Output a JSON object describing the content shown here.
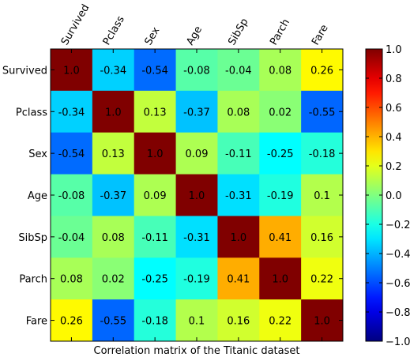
{
  "chart_data": {
    "type": "heatmap",
    "xlabel": "Correlation matrix of the Titanic dataset",
    "row_labels": [
      "Survived",
      "Pclass",
      "Sex",
      "Age",
      "SibSp",
      "Parch",
      "Fare"
    ],
    "col_labels": [
      "Survived",
      "Pclass",
      "Sex",
      "Age",
      "SibSp",
      "Parch",
      "Fare"
    ],
    "values": [
      [
        1.0,
        -0.34,
        -0.54,
        -0.08,
        -0.04,
        0.08,
        0.26
      ],
      [
        -0.34,
        1.0,
        0.13,
        -0.37,
        0.08,
        0.02,
        -0.55
      ],
      [
        -0.54,
        0.13,
        1.0,
        0.09,
        -0.11,
        -0.25,
        -0.18
      ],
      [
        -0.08,
        -0.37,
        0.09,
        1.0,
        -0.31,
        -0.19,
        0.1
      ],
      [
        -0.04,
        0.08,
        -0.11,
        -0.31,
        1.0,
        0.41,
        0.16
      ],
      [
        0.08,
        0.02,
        -0.25,
        -0.19,
        0.41,
        1.0,
        0.22
      ],
      [
        0.26,
        -0.55,
        -0.18,
        0.1,
        0.16,
        0.22,
        1.0
      ]
    ],
    "cell_text": [
      [
        "1.0",
        "-0.34",
        "-0.54",
        "-0.08",
        "-0.04",
        "0.08",
        "0.26"
      ],
      [
        "-0.34",
        "1.0",
        "0.13",
        "-0.37",
        "0.08",
        "0.02",
        "-0.55"
      ],
      [
        "-0.54",
        "0.13",
        "1.0",
        "0.09",
        "-0.11",
        "-0.25",
        "-0.18"
      ],
      [
        "-0.08",
        "-0.37",
        "0.09",
        "1.0",
        "-0.31",
        "-0.19",
        "0.1"
      ],
      [
        "-0.04",
        "0.08",
        "-0.11",
        "-0.31",
        "1.0",
        "0.41",
        "0.16"
      ],
      [
        "0.08",
        "0.02",
        "-0.25",
        "-0.19",
        "0.41",
        "1.0",
        "0.22"
      ],
      [
        "0.26",
        "-0.55",
        "-0.18",
        "0.1",
        "0.16",
        "0.22",
        "1.0"
      ]
    ],
    "colormap": "jet",
    "vmin": -1.0,
    "vmax": 1.0,
    "colorbar_ticks": [
      "1.0",
      "0.8",
      "0.6",
      "0.4",
      "0.2",
      "0.0",
      "−0.2",
      "−0.4",
      "−0.6",
      "−0.8",
      "−1.0"
    ],
    "colorbar_tick_values": [
      1.0,
      0.8,
      0.6,
      0.4,
      0.2,
      0.0,
      -0.2,
      -0.4,
      -0.6,
      -0.8,
      -1.0
    ],
    "colorbar_position": "right"
  }
}
